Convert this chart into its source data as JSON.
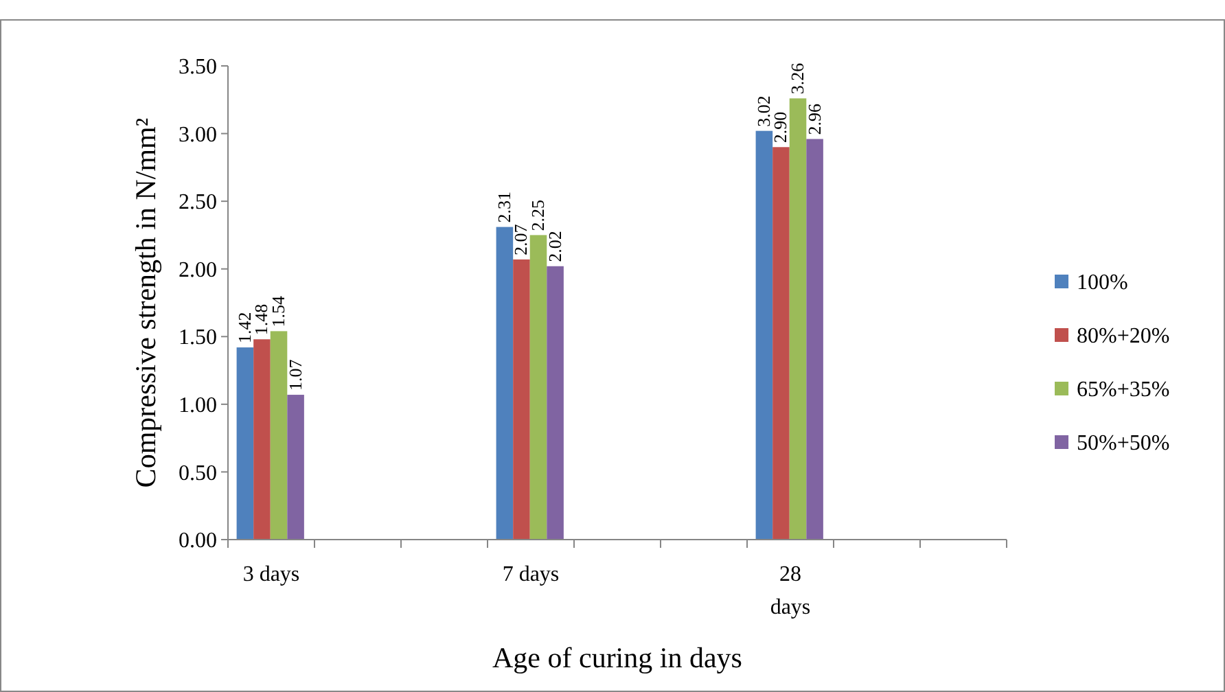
{
  "chart_data": {
    "type": "bar",
    "xlabel": "Age  of curing in days",
    "ylabel": "Compressive strength in N/mm²",
    "categories": [
      "3 days",
      null,
      null,
      "7 days",
      null,
      null,
      "28 days",
      null,
      null
    ],
    "series": [
      {
        "name": "100%",
        "color": "#4f81bd",
        "values": [
          1.42,
          null,
          null,
          2.31,
          null,
          null,
          3.02,
          null,
          null
        ],
        "value_labels": [
          "1.42",
          null,
          null,
          "2.31",
          null,
          null,
          "3.02",
          null,
          null
        ]
      },
      {
        "name": "80%+20%",
        "color": "#c0504d",
        "values": [
          1.48,
          null,
          null,
          2.07,
          null,
          null,
          2.9,
          null,
          null
        ],
        "value_labels": [
          "1.48",
          null,
          null,
          "2.07",
          null,
          null,
          "2.90",
          null,
          null
        ]
      },
      {
        "name": "65%+35%",
        "color": "#9bbb59",
        "values": [
          1.54,
          null,
          null,
          2.25,
          null,
          null,
          3.26,
          null,
          null
        ],
        "value_labels": [
          "1.54",
          null,
          null,
          "2.25",
          null,
          null,
          "3.26",
          null,
          null
        ]
      },
      {
        "name": "50%+50%",
        "color": "#8064a2",
        "values": [
          1.07,
          null,
          null,
          2.02,
          null,
          null,
          2.96,
          null,
          null
        ],
        "value_labels": [
          "1.07",
          null,
          null,
          "2.02",
          null,
          null,
          "2.96",
          null,
          null
        ]
      }
    ],
    "ylim": [
      0,
      3.5
    ],
    "yticks": [
      {
        "value": 0,
        "label": "0.00"
      },
      {
        "value": 0.5,
        "label": "0.50"
      },
      {
        "value": 1,
        "label": "1.00"
      },
      {
        "value": 1.5,
        "label": "1.50"
      },
      {
        "value": 2,
        "label": "2.00"
      },
      {
        "value": 2.5,
        "label": "2.50"
      },
      {
        "value": 3,
        "label": "3.00"
      },
      {
        "value": 3.5,
        "label": "3.50"
      }
    ],
    "legend": "right"
  }
}
